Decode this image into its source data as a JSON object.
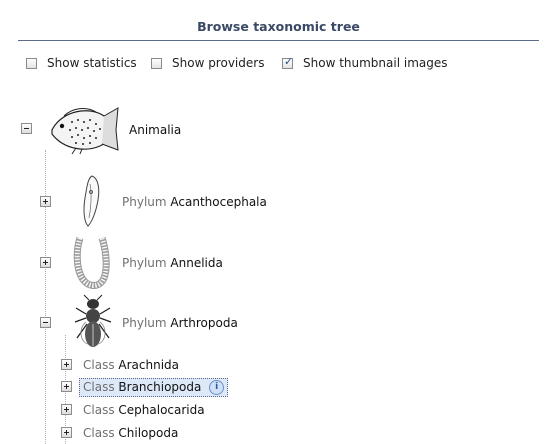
{
  "panel": {
    "title": "Browse taxonomic tree"
  },
  "options": [
    {
      "label": "Show statistics",
      "checked": false
    },
    {
      "label": "Show providers",
      "checked": false
    },
    {
      "label": "Show thumbnail images",
      "checked": true
    }
  ],
  "tree": {
    "root": {
      "name": "Animalia",
      "expanded": true
    },
    "phyla": [
      {
        "rank": "Phylum",
        "name": "Acanthocephala",
        "expanded": false
      },
      {
        "rank": "Phylum",
        "name": "Annelida",
        "expanded": false
      },
      {
        "rank": "Phylum",
        "name": "Arthropoda",
        "expanded": true
      }
    ],
    "classes": [
      {
        "rank": "Class",
        "name": "Arachnida"
      },
      {
        "rank": "Class",
        "name": "Branchiopoda",
        "selected": true
      },
      {
        "rank": "Class",
        "name": "Cephalocarida"
      },
      {
        "rank": "Class",
        "name": "Chilopoda"
      }
    ],
    "info_glyph": "i"
  },
  "colors": {
    "title": "#3a4a66",
    "rule": "#5a6c8a",
    "rank": "#6f6f6f"
  }
}
